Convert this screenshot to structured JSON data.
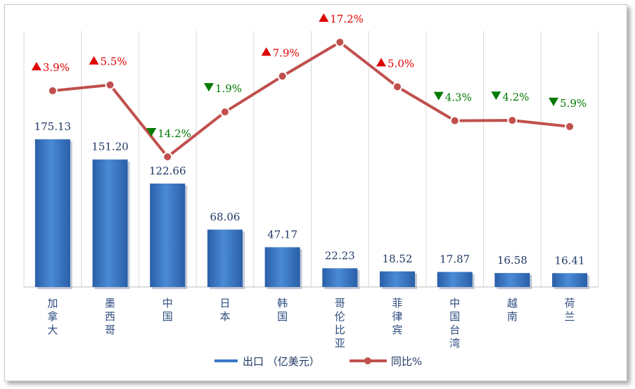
{
  "chart_data": {
    "type": "bar",
    "categories": [
      "加拿大",
      "墨西哥",
      "中国",
      "日本",
      "韩国",
      "哥伦比亚",
      "菲律宾",
      "中国台湾",
      "越南",
      "荷兰"
    ],
    "series": [
      {
        "name": "出口 （亿美元）",
        "type": "bar",
        "values": [
          175.13,
          151.2,
          122.66,
          68.06,
          47.17,
          22.23,
          18.52,
          17.87,
          16.58,
          16.41
        ],
        "labels": [
          "175.13",
          "151.20",
          "122.66",
          "68.06",
          "47.17",
          "22.23",
          "18.52",
          "17.87",
          "16.58",
          "16.41"
        ]
      },
      {
        "name": "同比%",
        "type": "line",
        "values": [
          3.9,
          5.5,
          -14.2,
          -1.9,
          7.9,
          17.2,
          5.0,
          -4.3,
          -4.2,
          -5.9
        ],
        "labels": [
          "3.9%",
          "5.5%",
          "14.2%",
          "1.9%",
          "7.9%",
          "17.2%",
          "5.0%",
          "4.3%",
          "4.2%",
          "5.9%"
        ]
      }
    ],
    "bar_ylim": [
      0,
      400
    ],
    "line_ylim": [
      -30,
      24
    ],
    "grid": "vertical",
    "legend": "bottom"
  },
  "colors": {
    "bar": "#3a78c8",
    "line": "#c0504d",
    "up": "#e00000",
    "down": "#007a00"
  },
  "icons": {
    "up": "triangle-up-icon",
    "down": "triangle-down-icon"
  }
}
